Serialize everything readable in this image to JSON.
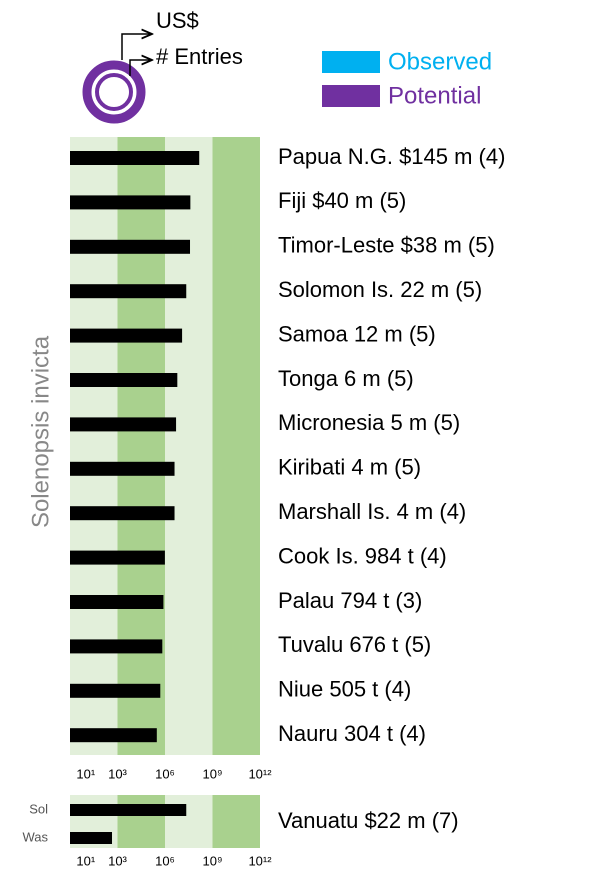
{
  "legend": {
    "ring_labels": [
      "US$",
      "# Entries"
    ],
    "items": [
      {
        "name": "Observed",
        "color": "#00b0f0"
      },
      {
        "name": "Potential",
        "color": "#7030a0"
      }
    ]
  },
  "chart_data": [
    {
      "type": "bar",
      "orientation": "horizontal",
      "y_label": "Solenopsis invicta",
      "categories": [
        "Papua N.G. $145 m (4)",
        "Fiji $40 m (5)",
        "Timor-Leste $38 m (5)",
        "Solomon Is. 22 m (5)",
        "Samoa 12 m (5)",
        "Tonga 6 m (5)",
        "Micronesia 5 m (5)",
        "Kiribati 4 m (5)",
        "Marshall Is. 4 m (4)",
        "Cook Is. 984 t (4)",
        "Palau 794 t (3)",
        "Tuvalu 676 t (5)",
        "Niue 505 t (4)",
        "Nauru 304 t (4)"
      ],
      "values": [
        145000000,
        40000000,
        38000000,
        22000000,
        12000000,
        6000000,
        5000000,
        4000000,
        4000000,
        984000,
        794000,
        676000,
        505000,
        304000
      ],
      "color": "#000000",
      "log_scale": true,
      "xlim": [
        1,
        1000000000000
      ],
      "xticks": [
        {
          "value": 10,
          "label": "10¹"
        },
        {
          "value": 1000,
          "label": "10³"
        },
        {
          "value": 1000000,
          "label": "10⁶"
        },
        {
          "value": 1000000000,
          "label": "10⁹"
        },
        {
          "value": 1000000000000,
          "label": "10¹²"
        }
      ],
      "grid": true
    },
    {
      "type": "bar",
      "orientation": "horizontal",
      "annotation": "Vanuatu $22 m (7)",
      "categories": [
        "Sol",
        "Was"
      ],
      "values": [
        22000000,
        450
      ],
      "color": "#000000",
      "log_scale": true,
      "xlim": [
        1,
        1000000000000
      ],
      "xticks": [
        {
          "value": 10,
          "label": "10¹"
        },
        {
          "value": 1000,
          "label": "10³"
        },
        {
          "value": 1000000,
          "label": "10⁶"
        },
        {
          "value": 1000000000,
          "label": "10⁹"
        },
        {
          "value": 1000000000000,
          "label": "10¹²"
        }
      ],
      "grid": true
    }
  ]
}
